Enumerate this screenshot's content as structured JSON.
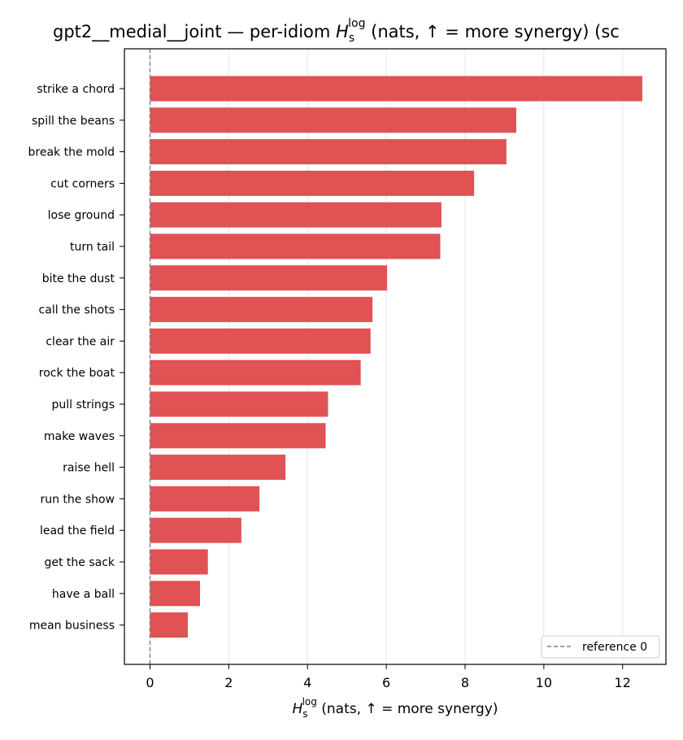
{
  "chart_data": {
    "type": "bar",
    "orientation": "horizontal",
    "title_prefix": "gpt2__medial__joint — per-idiom ",
    "title_suffix": " (nats, ↑ = more synergy) (sc",
    "xlabel_suffix": " (nats, ↑ = more synergy)",
    "math_symbol": "H",
    "math_sub": "s",
    "math_sup": "log",
    "categories": [
      "strike a chord",
      "spill the beans",
      "break the mold",
      "cut corners",
      "lose ground",
      "turn tail",
      "bite the dust",
      "call the shots",
      "clear the air",
      "rock the boat",
      "pull strings",
      "make waves",
      "raise hell",
      "run the show",
      "lead the field",
      "get the sack",
      "have a ball",
      "mean business"
    ],
    "values": [
      12.5,
      9.3,
      9.05,
      8.23,
      7.4,
      7.37,
      6.02,
      5.65,
      5.6,
      5.35,
      4.52,
      4.46,
      3.44,
      2.78,
      2.32,
      1.47,
      1.27,
      0.96
    ],
    "xlim": [
      -0.65,
      13.1
    ],
    "xticks": [
      0,
      2,
      4,
      6,
      8,
      10,
      12
    ],
    "grid_x": true,
    "reference_line": {
      "x": 0,
      "label": "reference 0"
    },
    "legend": {
      "position": "lower-right"
    },
    "bar_color": "#e05254"
  }
}
